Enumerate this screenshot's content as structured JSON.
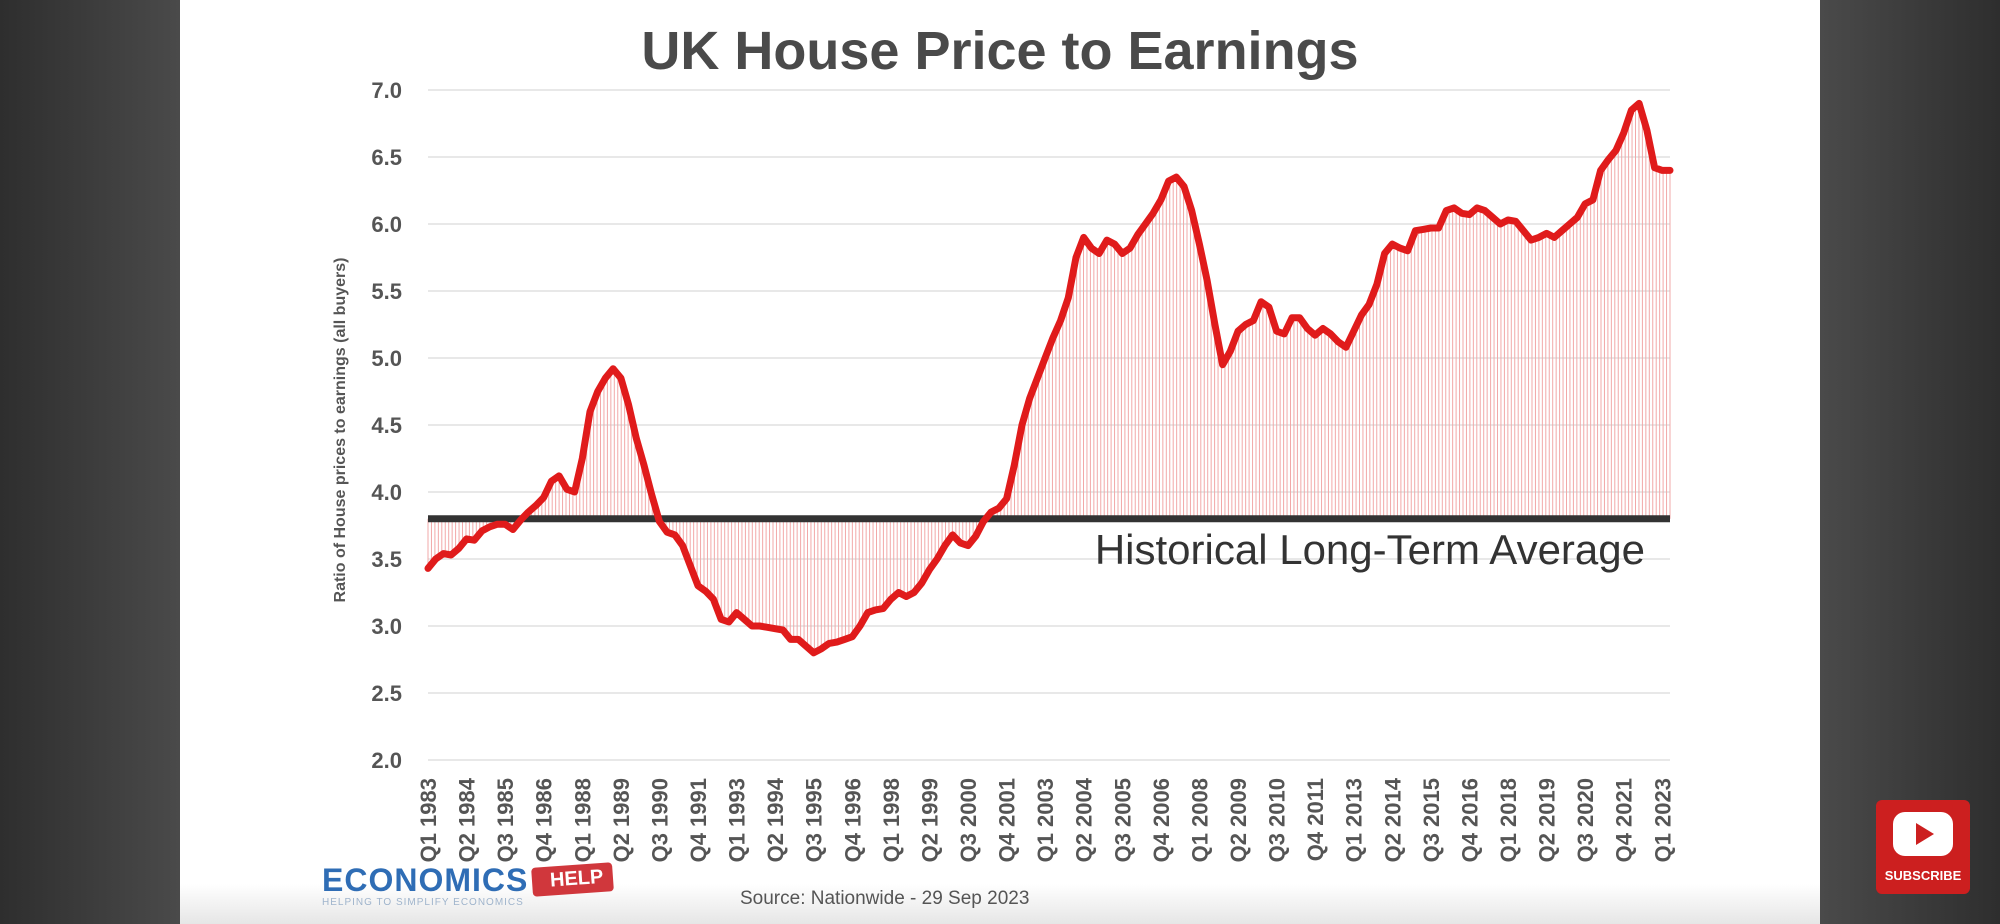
{
  "chart_data": {
    "type": "line",
    "title": "UK House Price to Earnings",
    "ylabel": "Ratio of House prices to earnings (all buyers)",
    "xlabel": "",
    "ylim": [
      2.0,
      7.0
    ],
    "yticks": [
      "2.0",
      "2.5",
      "3.0",
      "3.5",
      "4.0",
      "4.5",
      "5.0",
      "5.5",
      "6.0",
      "6.5",
      "7.0"
    ],
    "xticks": [
      "Q1 1983",
      "Q2 1984",
      "Q3 1985",
      "Q4 1986",
      "Q1 1988",
      "Q2 1989",
      "Q3 1990",
      "Q4 1991",
      "Q1 1993",
      "Q2 1994",
      "Q3 1995",
      "Q4 1996",
      "Q1 1998",
      "Q2 1999",
      "Q3 2000",
      "Q4 2001",
      "Q1 2003",
      "Q2 2004",
      "Q3 2005",
      "Q4 2006",
      "Q1 2008",
      "Q2 2009",
      "Q3 2010",
      "Q4 2011",
      "Q1 2013",
      "Q2 2014",
      "Q3 2015",
      "Q4 2016",
      "Q1 2018",
      "Q2 2019",
      "Q3 2020",
      "Q4 2021",
      "Q1 2023"
    ],
    "grid": true,
    "reference_line": {
      "value": 3.8,
      "label": "Historical Long-Term Average"
    },
    "series": [
      {
        "color": "#e01b1b",
        "x_start": "Q1 1983",
        "x_end": "Q3 2023",
        "values": [
          3.43,
          3.5,
          3.54,
          3.53,
          3.58,
          3.65,
          3.64,
          3.71,
          3.74,
          3.76,
          3.76,
          3.72,
          3.79,
          3.85,
          3.9,
          3.96,
          4.08,
          4.12,
          4.02,
          4.0,
          4.25,
          4.6,
          4.75,
          4.85,
          4.92,
          4.85,
          4.65,
          4.4,
          4.2,
          3.98,
          3.78,
          3.7,
          3.68,
          3.6,
          3.45,
          3.3,
          3.26,
          3.2,
          3.05,
          3.03,
          3.1,
          3.05,
          3.0,
          3.0,
          2.99,
          2.98,
          2.97,
          2.9,
          2.9,
          2.85,
          2.8,
          2.83,
          2.87,
          2.88,
          2.9,
          2.92,
          3.0,
          3.1,
          3.12,
          3.13,
          3.2,
          3.25,
          3.22,
          3.25,
          3.32,
          3.42,
          3.5,
          3.6,
          3.68,
          3.62,
          3.6,
          3.67,
          3.78,
          3.85,
          3.88,
          3.95,
          4.2,
          4.5,
          4.7,
          4.85,
          5.0,
          5.15,
          5.28,
          5.45,
          5.75,
          5.9,
          5.82,
          5.78,
          5.88,
          5.85,
          5.78,
          5.82,
          5.92,
          6.0,
          6.08,
          6.18,
          6.32,
          6.35,
          6.28,
          6.1,
          5.85,
          5.58,
          5.25,
          4.95,
          5.05,
          5.2,
          5.25,
          5.28,
          5.42,
          5.38,
          5.2,
          5.18,
          5.3,
          5.3,
          5.22,
          5.17,
          5.22,
          5.18,
          5.12,
          5.08,
          5.2,
          5.32,
          5.4,
          5.55,
          5.78,
          5.85,
          5.82,
          5.8,
          5.95,
          5.96,
          5.97,
          5.97,
          6.1,
          6.12,
          6.08,
          6.07,
          6.12,
          6.1,
          6.05,
          6.0,
          6.03,
          6.02,
          5.95,
          5.88,
          5.9,
          5.93,
          5.9,
          5.95,
          6.0,
          6.05,
          6.15,
          6.18,
          6.4,
          6.48,
          6.55,
          6.68,
          6.85,
          6.9,
          6.7,
          6.42,
          6.4,
          6.4
        ]
      }
    ]
  },
  "footer": {
    "logo_main": "ECONOMICS",
    "logo_tag": "HELP",
    "logo_sub": "HELPING TO SIMPLIFY ECONOMICS",
    "source": "Source: Nationwide - 29 Sep 2023"
  },
  "subscribe": {
    "label": "SUBSCRIBE"
  }
}
